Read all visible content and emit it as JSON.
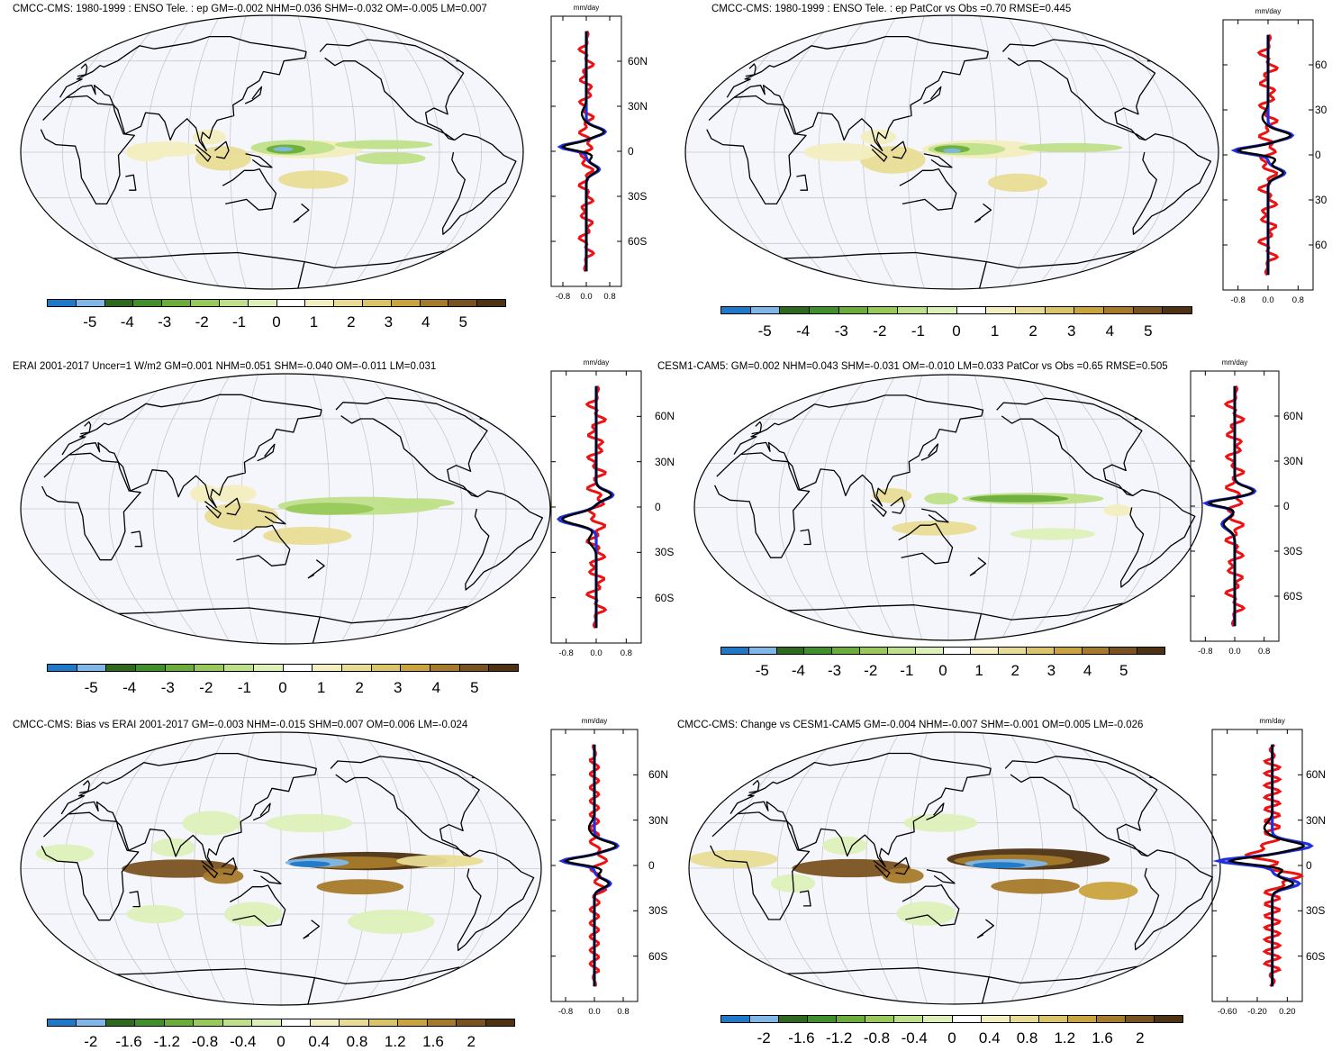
{
  "panels": [
    {
      "title": "CMCC-CMS: 1980-1999 : ENSO Tele. : ep GM=-0.002 NHM=0.036 SHM=-0.032 OM=-0.005 LM=0.007",
      "cb_labels": [
        "-5",
        "-4",
        "-3",
        "-2",
        "-1",
        "0",
        "1",
        "2",
        "3",
        "4",
        "5"
      ],
      "profile_xticks": [
        "-0.8",
        "0.0",
        "0.8"
      ],
      "profile_yticks": [
        "60N",
        "30N",
        "0",
        "30S",
        "60S"
      ],
      "units": "mm/day"
    },
    {
      "title": "CMCC-CMS: 1980-1999 : ENSO Tele. : ep PatCor vs Obs =0.70 RMSE=0.445",
      "cb_labels": [
        "-5",
        "-4",
        "-3",
        "-2",
        "-1",
        "0",
        "1",
        "2",
        "3",
        "4",
        "5"
      ],
      "profile_xticks": [
        "-0.8",
        "0.0",
        "0.8"
      ],
      "profile_yticks": [
        "60",
        "30",
        "0",
        "30",
        "60"
      ],
      "units": "mm/day"
    },
    {
      "title": "ERAI 2001-2017 Uncer=1 W/m2 GM=0.001 NHM=0.051 SHM=-0.040 OM=-0.011 LM=0.031",
      "cb_labels": [
        "-5",
        "-4",
        "-3",
        "-2",
        "-1",
        "0",
        "1",
        "2",
        "3",
        "4",
        "5"
      ],
      "profile_xticks": [
        "-0.8",
        "0.0",
        "0.8"
      ],
      "profile_yticks": [
        "60N",
        "30N",
        "0",
        "30S",
        "60S"
      ],
      "units": "mm/day"
    },
    {
      "title": "CESM1-CAM5: GM=0.002 NHM=0.043 SHM=-0.031 OM=-0.010 LM=0.033 PatCor vs Obs =0.65 RMSE=0.505",
      "cb_labels": [
        "-5",
        "-4",
        "-3",
        "-2",
        "-1",
        "0",
        "1",
        "2",
        "3",
        "4",
        "5"
      ],
      "profile_xticks": [
        "-0.8",
        "0.0",
        "0.8"
      ],
      "profile_yticks": [
        "60N",
        "30N",
        "0",
        "30S",
        "60S"
      ],
      "units": "mm/day"
    },
    {
      "title": "CMCC-CMS: Bias vs ERAI 2001-2017 GM=-0.003 NHM=-0.015 SHM=0.007 OM=0.006 LM=-0.024",
      "cb_labels": [
        "-2",
        "-1.6",
        "-1.2",
        "-0.8",
        "-0.4",
        "0",
        "0.4",
        "0.8",
        "1.2",
        "1.6",
        "2"
      ],
      "profile_xticks": [
        "-0.8",
        "0.0",
        "0.8"
      ],
      "profile_yticks": [
        "60N",
        "30N",
        "0",
        "30S",
        "60S"
      ],
      "units": "mm/day"
    },
    {
      "title": "CMCC-CMS: Change vs CESM1-CAM5 GM=-0.004 NHM=-0.007 SHM=-0.001 OM=0.005 LM=-0.026",
      "cb_labels": [
        "-2",
        "-1.6",
        "-1.2",
        "-0.8",
        "-0.4",
        "0",
        "0.4",
        "0.8",
        "1.2",
        "1.6",
        "2"
      ],
      "profile_xticks": [
        "-0.60",
        "-0.20",
        "0.20"
      ],
      "profile_yticks": [
        "60N",
        "30N",
        "0",
        "30S",
        "60S"
      ],
      "units": "mm/day"
    }
  ],
  "palette": [
    "#1f78c8",
    "#7fb8e8",
    "#2d6a1f",
    "#3f8f2a",
    "#6aad3a",
    "#98c95a",
    "#bfe08a",
    "#ddf0b8",
    "#ffffff",
    "#f3eec0",
    "#e8dc95",
    "#d9c46a",
    "#c9a33e",
    "#a57a2a",
    "#7a5220",
    "#4f3212"
  ],
  "colors": {
    "obs_line": "#000000",
    "model_line": "#2030e0",
    "diff_line": "#ee1111",
    "land_outline": "#000000",
    "ocean_fill": "#f5f6fc",
    "grid": "#c8c8c8"
  }
}
